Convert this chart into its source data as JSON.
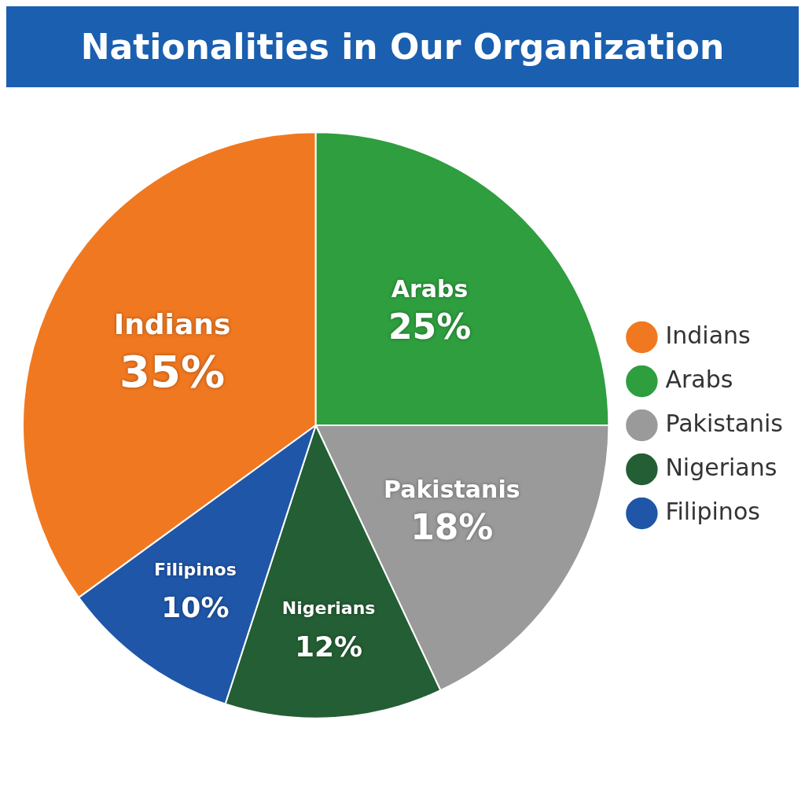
{
  "chart_data": {
    "type": "pie",
    "title": "Nationalities in Our Organization",
    "categories": [
      "Indians",
      "Arabs",
      "Pakistanis",
      "Nigerians",
      "Filipinos"
    ],
    "values": [
      35,
      25,
      18,
      12,
      10
    ],
    "colors": [
      "#f07820",
      "#2e9e3e",
      "#9a9a9a",
      "#245e34",
      "#1f56a8"
    ],
    "value_labels": [
      "35%",
      "25%",
      "18%",
      "12%",
      "10%"
    ],
    "legend": "right"
  }
}
